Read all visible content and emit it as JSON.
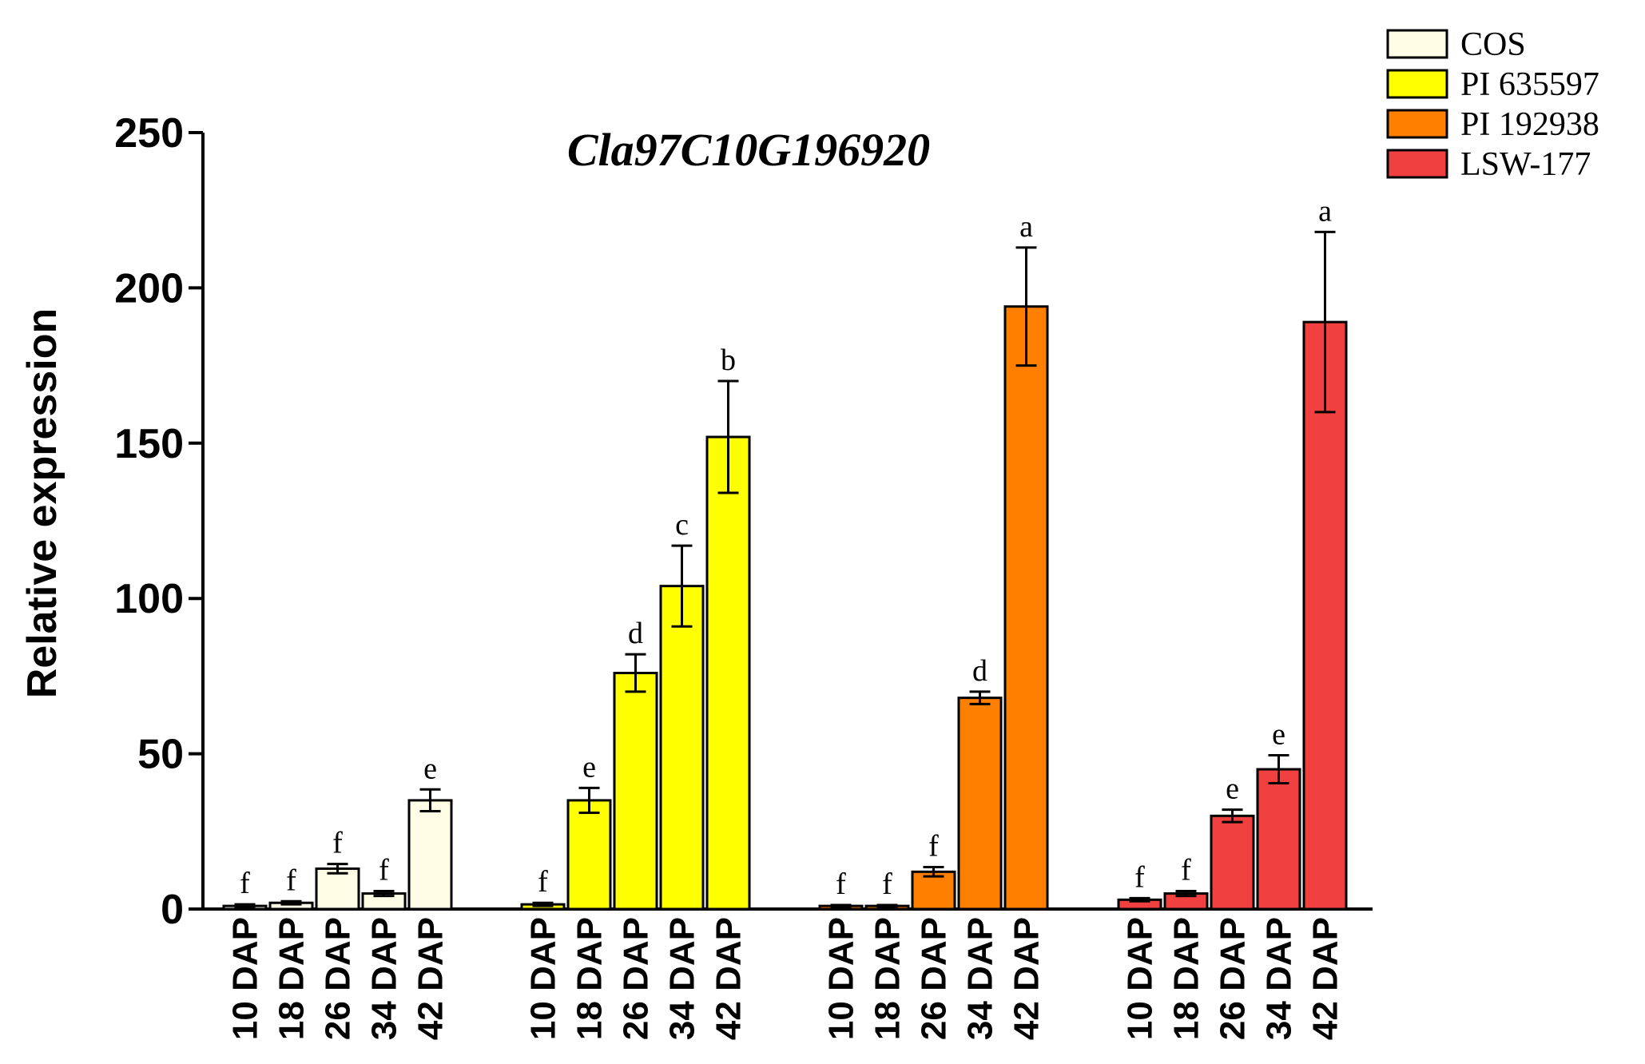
{
  "chart_data": {
    "type": "bar",
    "title": "Cla97C10G196920",
    "xlabel": "",
    "ylabel": "Relative expression",
    "ylim": [
      0,
      250
    ],
    "yticks": [
      0,
      50,
      100,
      150,
      200,
      250
    ],
    "categories": [
      "10 DAP",
      "18 DAP",
      "26 DAP",
      "34 DAP",
      "42 DAP"
    ],
    "grid": false,
    "legend_position": "top-right",
    "series": [
      {
        "name": "COS",
        "color": "#FFFDE6",
        "values": [
          1,
          2,
          13,
          5,
          35
        ],
        "errors": [
          0.5,
          0.5,
          1.5,
          0.8,
          3.5
        ],
        "labels": [
          "f",
          "f",
          "f",
          "f",
          "e"
        ]
      },
      {
        "name": "PI 635597",
        "color": "#FFFF00",
        "values": [
          1.5,
          35,
          76,
          104,
          152
        ],
        "errors": [
          0.5,
          4,
          6,
          13,
          18
        ],
        "labels": [
          "f",
          "e",
          "d",
          "c",
          "b"
        ]
      },
      {
        "name": "PI 192938",
        "color": "#FF7F00",
        "values": [
          1,
          1,
          12,
          68,
          194
        ],
        "errors": [
          0.3,
          0.3,
          1.5,
          2,
          19
        ],
        "labels": [
          "f",
          "f",
          "f",
          "d",
          "a"
        ]
      },
      {
        "name": "LSW-177",
        "color": "#F04040",
        "values": [
          3,
          5,
          30,
          45,
          189
        ],
        "errors": [
          0.5,
          0.8,
          2,
          4.5,
          29
        ],
        "labels": [
          "f",
          "f",
          "e",
          "e",
          "a"
        ]
      }
    ]
  }
}
